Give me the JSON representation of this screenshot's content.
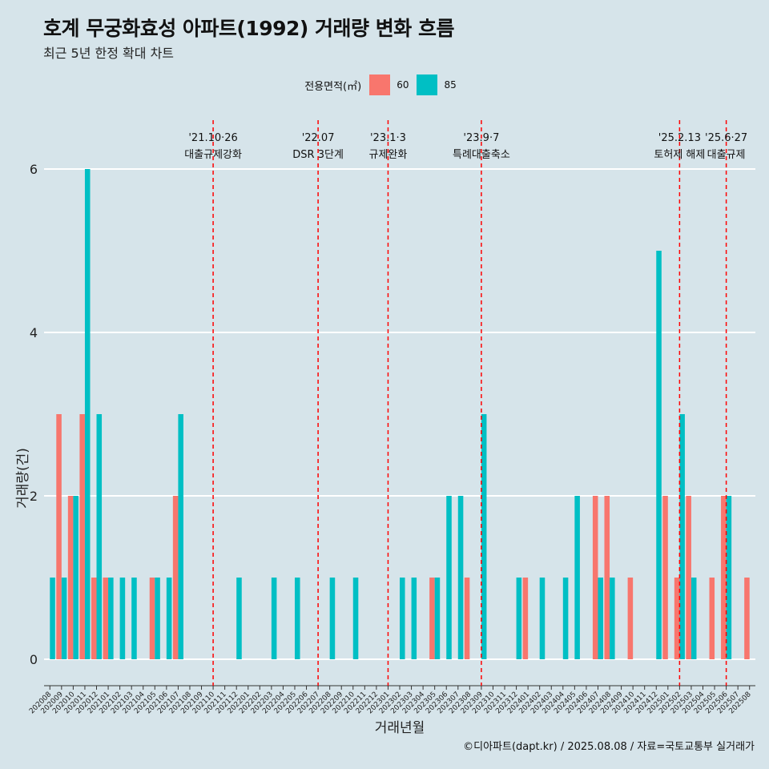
{
  "title": "호계 무궁화효성 아파트(1992) 거래량 변화 흐름",
  "subtitle": "최근 5년 한정 확대 차트",
  "caption": "©디아파트(dapt.kr) / 2025.08.08 / 자료=국토교통부 실거래가",
  "legend": {
    "title": "전용면적(㎡)",
    "items": [
      {
        "label": "60",
        "color": "#f8766d"
      },
      {
        "label": "85",
        "color": "#00bfc4"
      }
    ]
  },
  "chart_data": {
    "type": "bar",
    "xlabel": "거래년월",
    "ylabel": "거래량(건)",
    "ylim": [
      0,
      6
    ],
    "yticks": [
      0,
      2,
      4,
      6
    ],
    "grid": true,
    "legend_position": "top",
    "categories": [
      "202008",
      "202009",
      "202010",
      "202011",
      "202012",
      "202101",
      "202102",
      "202103",
      "202104",
      "202105",
      "202106",
      "202107",
      "202108",
      "202109",
      "202110",
      "202111",
      "202112",
      "202201",
      "202202",
      "202203",
      "202204",
      "202205",
      "202206",
      "202207",
      "202208",
      "202209",
      "202210",
      "202211",
      "202212",
      "202301",
      "202302",
      "202303",
      "202304",
      "202305",
      "202306",
      "202307",
      "202308",
      "202309",
      "202310",
      "202311",
      "202312",
      "202401",
      "202402",
      "202403",
      "202404",
      "202405",
      "202406",
      "202407",
      "202408",
      "202409",
      "202410",
      "202411",
      "202412",
      "202501",
      "202502",
      "202503",
      "202504",
      "202505",
      "202506",
      "202507",
      "202508"
    ],
    "series": [
      {
        "name": "60",
        "color": "#f8766d",
        "values": [
          0,
          3,
          2,
          3,
          1,
          1,
          0,
          0,
          0,
          1,
          0,
          2,
          0,
          0,
          0,
          0,
          0,
          0,
          0,
          0,
          0,
          0,
          0,
          0,
          0,
          0,
          0,
          0,
          0,
          0,
          0,
          0,
          0,
          1,
          0,
          0,
          1,
          0,
          0,
          0,
          0,
          1,
          0,
          0,
          0,
          0,
          0,
          2,
          2,
          0,
          1,
          0,
          0,
          2,
          1,
          2,
          0,
          1,
          2,
          0,
          1
        ]
      },
      {
        "name": "85",
        "color": "#00bfc4",
        "values": [
          1,
          1,
          2,
          6,
          3,
          1,
          1,
          1,
          0,
          1,
          1,
          3,
          0,
          0,
          0,
          0,
          1,
          0,
          0,
          1,
          0,
          1,
          0,
          0,
          1,
          0,
          1,
          0,
          0,
          0,
          1,
          1,
          0,
          1,
          2,
          2,
          0,
          3,
          0,
          0,
          1,
          0,
          1,
          0,
          1,
          2,
          0,
          1,
          1,
          0,
          0,
          0,
          5,
          0,
          3,
          1,
          0,
          0,
          2,
          0,
          0
        ]
      }
    ],
    "annotations": [
      {
        "x": "202110",
        "date": "'21.10·26",
        "label": "대출규제강화"
      },
      {
        "x": "202207",
        "date": "'22.07",
        "label": "DSR 3단계"
      },
      {
        "x": "202301",
        "date": "'23.1·3",
        "label": "규제완화"
      },
      {
        "x": "202309",
        "date": "'23.9·7",
        "label": "특례대출축소"
      },
      {
        "x": "202502",
        "date": "'25.2.13",
        "label": "토허제 해제"
      },
      {
        "x": "202506",
        "date": "'25.6·27",
        "label": "대출규제"
      }
    ],
    "annotation_line_color": "#ff0000"
  }
}
